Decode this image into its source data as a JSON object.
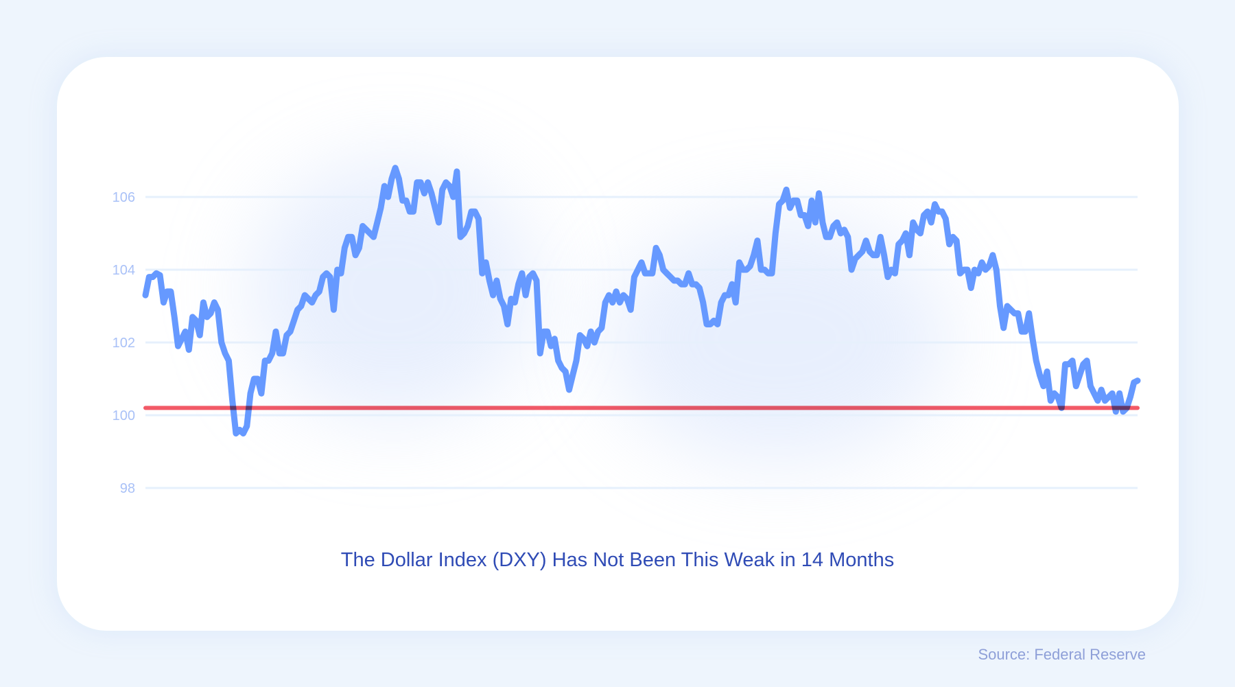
{
  "chart_data": {
    "type": "line",
    "title": "The Dollar Index (DXY) Has Not Been This Weak in 14 Months",
    "source": "Source: Federal Reserve",
    "xlabel": "",
    "ylabel": "",
    "ylim": [
      98,
      107
    ],
    "yticks": [
      "98",
      "100",
      "102",
      "104",
      "106"
    ],
    "grid": true,
    "colors": {
      "series": "#6699ff",
      "reference": "#f2515f",
      "title": "#2f4bb5"
    },
    "reference_line": 100.2,
    "series": [
      {
        "values": [
          103.3,
          103.8,
          103.8,
          103.9,
          103.85,
          103.1,
          103.4,
          103.4,
          102.7,
          101.9,
          102.1,
          102.3,
          101.8,
          102.7,
          102.6,
          102.2,
          103.1,
          102.7,
          102.8,
          103.1,
          102.9,
          102.0,
          101.7,
          101.5,
          100.4,
          99.5,
          99.6,
          99.5,
          99.7,
          100.6,
          101.0,
          101.0,
          100.6,
          101.5,
          101.5,
          101.7,
          102.3,
          101.7,
          101.7,
          102.2,
          102.3,
          102.6,
          102.9,
          103.0,
          103.3,
          103.2,
          103.1,
          103.3,
          103.4,
          103.8,
          103.9,
          103.8,
          102.9,
          104.0,
          103.9,
          104.6,
          104.9,
          104.9,
          104.4,
          104.6,
          105.2,
          105.1,
          105.0,
          104.9,
          105.3,
          105.7,
          106.3,
          106.0,
          106.5,
          106.8,
          106.5,
          105.9,
          105.9,
          105.6,
          105.6,
          106.4,
          106.4,
          106.1,
          106.4,
          106.1,
          105.7,
          105.3,
          106.2,
          106.4,
          106.3,
          106.0,
          106.7,
          104.9,
          105.0,
          105.2,
          105.6,
          105.6,
          105.4,
          103.9,
          104.2,
          103.7,
          103.3,
          103.7,
          103.2,
          103.0,
          102.5,
          103.2,
          103.1,
          103.6,
          103.9,
          103.3,
          103.8,
          103.9,
          103.7,
          101.7,
          102.3,
          102.3,
          101.9,
          102.1,
          101.5,
          101.3,
          101.2,
          100.7,
          101.1,
          101.5,
          102.2,
          102.1,
          101.9,
          102.3,
          102.0,
          102.3,
          102.4,
          103.1,
          103.3,
          103.1,
          103.4,
          103.1,
          103.3,
          103.2,
          102.9,
          103.8,
          104.0,
          104.2,
          103.9,
          103.9,
          103.9,
          104.6,
          104.4,
          104.0,
          103.9,
          103.8,
          103.7,
          103.7,
          103.6,
          103.6,
          103.9,
          103.6,
          103.6,
          103.5,
          103.1,
          102.5,
          102.5,
          102.6,
          102.5,
          103.1,
          103.3,
          103.3,
          103.6,
          103.1,
          104.2,
          104.0,
          104.0,
          104.1,
          104.4,
          104.8,
          104.0,
          104.0,
          103.9,
          103.9,
          105.0,
          105.8,
          105.9,
          106.2,
          105.7,
          105.9,
          105.9,
          105.5,
          105.5,
          105.2,
          105.9,
          105.3,
          106.1,
          105.3,
          104.9,
          104.9,
          105.2,
          105.3,
          105.0,
          105.1,
          104.9,
          104.0,
          104.3,
          104.4,
          104.5,
          104.8,
          104.5,
          104.4,
          104.4,
          104.9,
          104.4,
          103.8,
          104.0,
          103.9,
          104.7,
          104.8,
          105.0,
          104.4,
          105.3,
          105.1,
          105.0,
          105.5,
          105.6,
          105.3,
          105.8,
          105.6,
          105.6,
          105.4,
          104.7,
          104.9,
          104.8,
          103.9,
          104.0,
          104.0,
          103.5,
          104.0,
          103.9,
          104.2,
          104.0,
          104.1,
          104.4,
          104.0,
          103.0,
          102.4,
          103.0,
          102.9,
          102.8,
          102.8,
          102.3,
          102.3,
          102.8,
          102.1,
          101.5,
          101.1,
          100.8,
          101.2,
          100.4,
          100.6,
          100.5,
          100.2,
          101.4,
          101.4,
          101.5,
          100.8,
          101.1,
          101.4,
          101.5,
          100.8,
          100.6,
          100.4,
          100.7,
          100.4,
          100.5,
          100.6,
          100.1,
          100.6,
          100.1,
          100.2,
          100.5,
          100.9,
          100.95
        ]
      }
    ]
  }
}
